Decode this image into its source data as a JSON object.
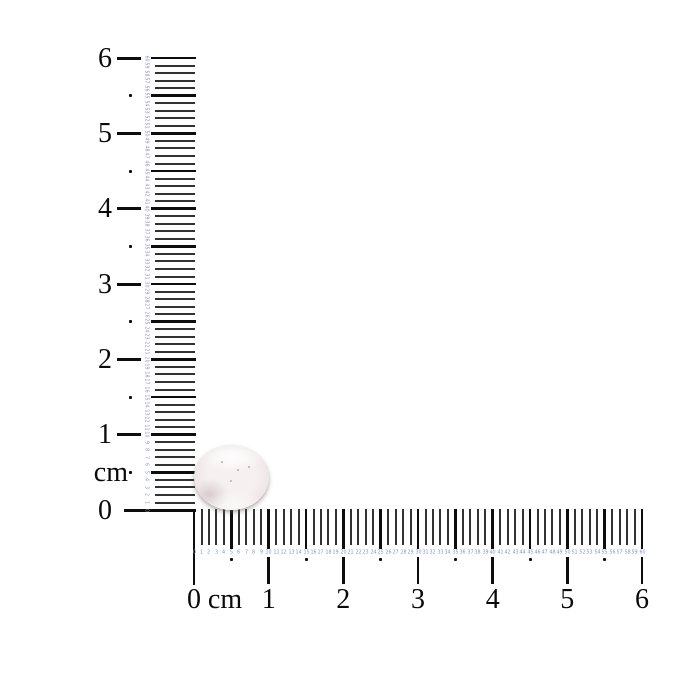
{
  "scene": {
    "background": "#ffffff",
    "description": "gemstone product photo with L-shaped centimeter/millimeter measuring rulers"
  },
  "vertical_ruler": {
    "unit_label": "cm",
    "cm_labels": [
      "0",
      "1",
      "2",
      "3",
      "4",
      "5",
      "6"
    ],
    "mm_min": 0,
    "mm_max": 60,
    "major_tick_color": "#0d0d0d",
    "minor_tick_color": "#323232",
    "mm_number_color": "#8690cb",
    "label_color": "#0a0a0a"
  },
  "horizontal_ruler": {
    "unit_label": "cm",
    "cm_labels": [
      "0",
      "1",
      "2",
      "3",
      "4",
      "5",
      "6"
    ],
    "mm_min": 0,
    "mm_max": 60,
    "major_tick_color": "#0d0d0d",
    "minor_tick_color": "#323232",
    "mm_number_color": "#8690cb",
    "label_color": "#0a0a0a"
  },
  "gemstone": {
    "name": "translucent-pale-pink-cabochon",
    "body_color": "#f6f0f0",
    "rim_color": "#c9bcbc",
    "speckle_color": "#8a7f82",
    "shadow_color": "rgba(100,88,88,0.35)"
  }
}
